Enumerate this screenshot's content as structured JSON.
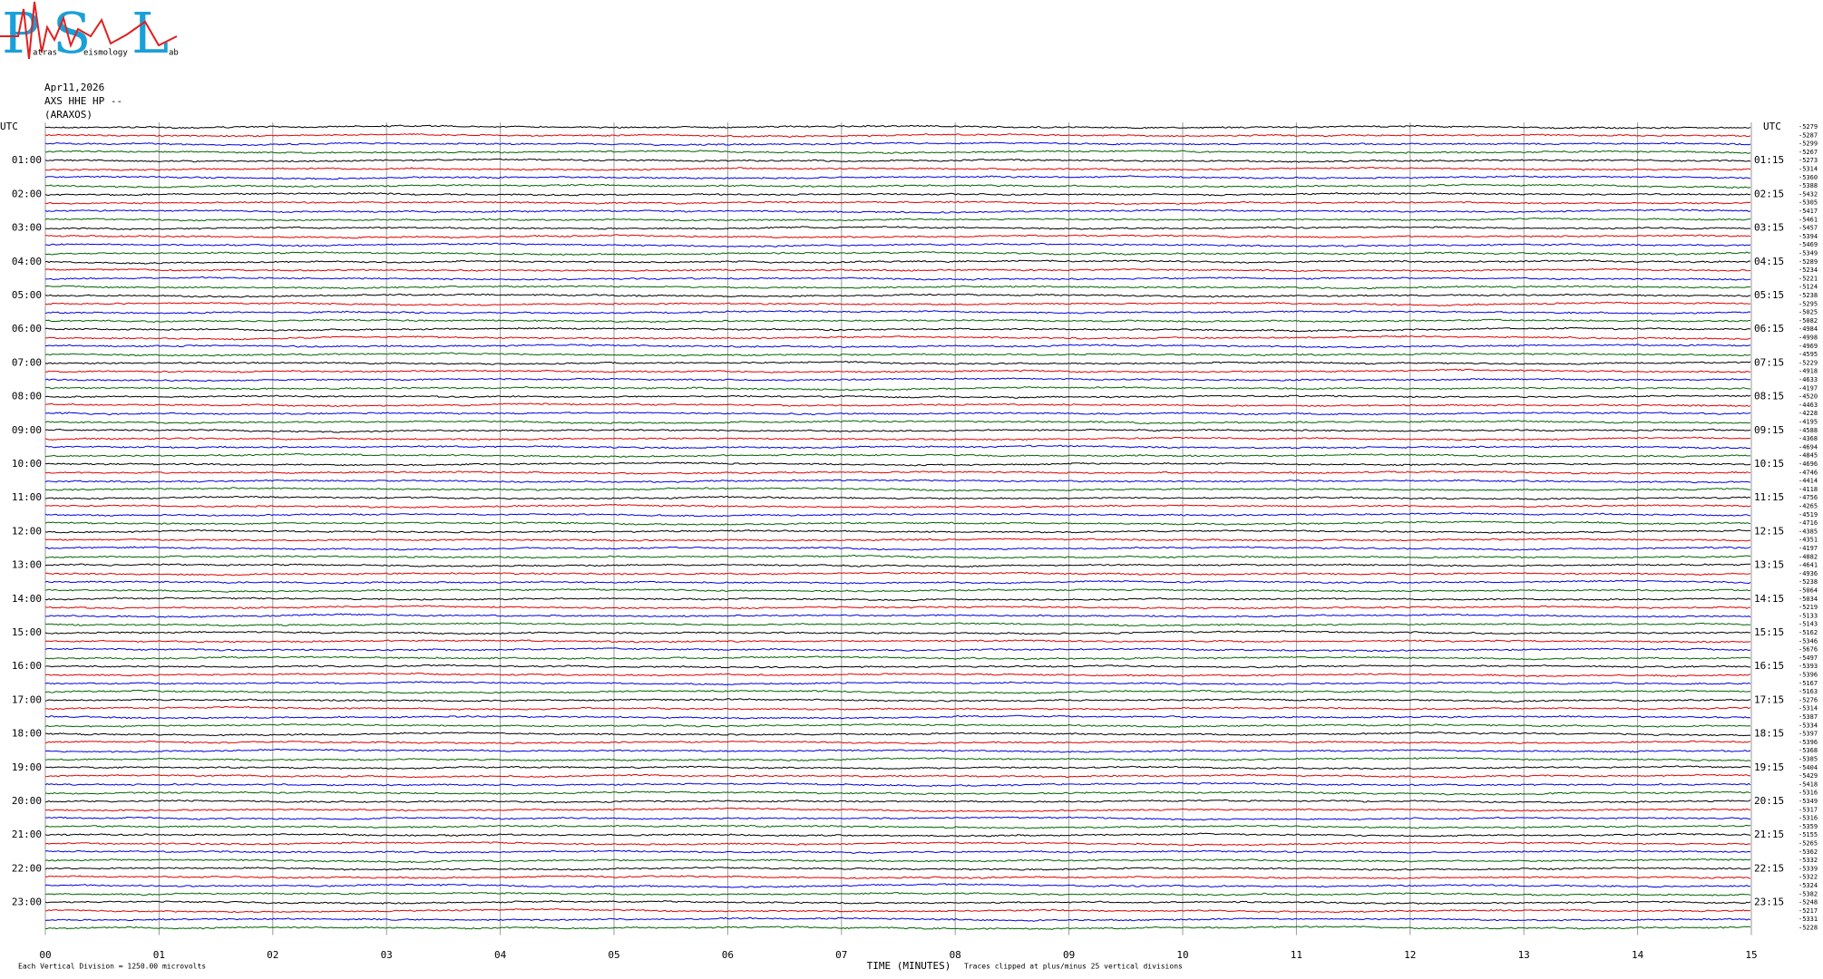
{
  "logo": {
    "letters": [
      "P",
      "S",
      "L"
    ],
    "small": [
      "atras",
      "eismology",
      "ab"
    ]
  },
  "header": {
    "date": "Apr11,2026",
    "station": "AXS HHE HP --",
    "site": "(ARAXOS)"
  },
  "left_axis": {
    "title": "UTC",
    "labels": [
      "01:00",
      "02:00",
      "03:00",
      "04:00",
      "05:00",
      "06:00",
      "07:00",
      "08:00",
      "09:00",
      "10:00",
      "11:00",
      "12:00",
      "13:00",
      "14:00",
      "15:00",
      "16:00",
      "17:00",
      "18:00",
      "19:00",
      "20:00",
      "21:00",
      "22:00",
      "23:00"
    ]
  },
  "right_axis": {
    "title": "UTC",
    "labels": [
      "01:15",
      "02:15",
      "03:15",
      "04:15",
      "05:15",
      "06:15",
      "07:15",
      "08:15",
      "09:15",
      "10:15",
      "11:15",
      "12:15",
      "13:15",
      "14:15",
      "15:15",
      "16:15",
      "17:15",
      "18:15",
      "19:15",
      "20:15",
      "21:15",
      "22:15",
      "23:15"
    ]
  },
  "trace_offsets": [
    "-5279",
    "-5287",
    "-5299",
    "-5267",
    "-5273",
    "-5314",
    "-5360",
    "-5388",
    "-5432",
    "-5305",
    "-5417",
    "-5461",
    "-5457",
    "-5394",
    "-5469",
    "-5349",
    "-5289",
    "-5234",
    "-5221",
    "-5124",
    "-5238",
    "-5295",
    "-5025",
    "-5082",
    "-4984",
    "-4998",
    "-4969",
    "-4595",
    "-5229",
    "-4918",
    "-4633",
    "-4197",
    "-4520",
    "-4463",
    "-4228",
    "-4195",
    "-4588",
    "-4368",
    "-4694",
    "-4845",
    "-4696",
    "-4746",
    "-4414",
    "-4118",
    "-4756",
    "-4265",
    "-4519",
    "-4716",
    "-4385",
    "-4351",
    "-4197",
    "-4882",
    "-4641",
    "-4936",
    "-5238",
    "-5064",
    "-5034",
    "-5219",
    "-5133",
    "-5143",
    "-5162",
    "-5346",
    "-5676",
    "-5497",
    "-5393",
    "-5396",
    "-5167",
    "-5163",
    "-5276",
    "-5314",
    "-5387",
    "-5334",
    "-5397",
    "-5396",
    "-5368",
    "-5385",
    "-5404",
    "-5429",
    "-5418",
    "-5316",
    "-5349",
    "-5317",
    "-5316",
    "-5359",
    "-5155",
    "-5265",
    "-5362",
    "-5332",
    "-5339",
    "-5322",
    "-5324",
    "-5382",
    "-5248",
    "-5217",
    "-5331",
    "-5228"
  ],
  "x_axis": {
    "labels": [
      "00",
      "01",
      "02",
      "03",
      "04",
      "05",
      "06",
      "07",
      "08",
      "09",
      "10",
      "11",
      "12",
      "13",
      "14",
      "15"
    ],
    "title": "TIME (MINUTES)"
  },
  "footer": {
    "scale_note": "Each Vertical Division = 1250.00 microvolts",
    "clip_note": "Traces clipped at plus/minus 25 vertical divisions"
  },
  "trace_colors": [
    "#000000",
    "#e00000",
    "#0000e0",
    "#006400"
  ]
}
